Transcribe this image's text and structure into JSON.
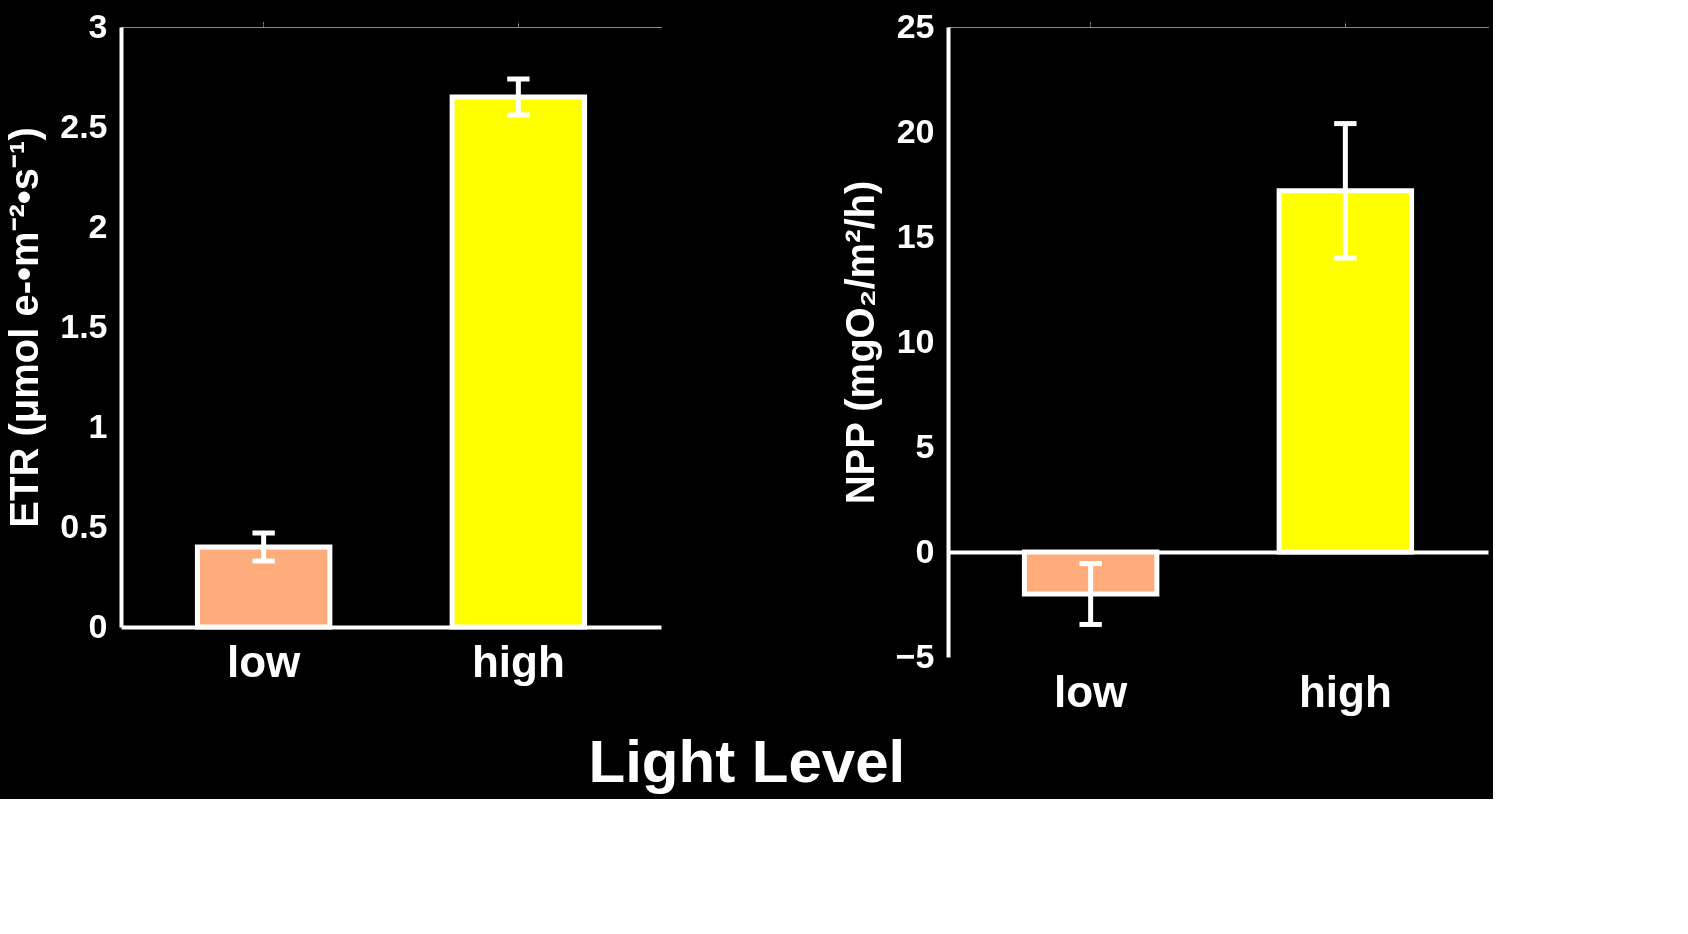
{
  "chart_data": [
    {
      "type": "bar",
      "ylabel": "ETR (μmol e-•m⁻²•s⁻¹)",
      "categories": [
        "low",
        "high"
      ],
      "values": [
        0.4,
        2.65
      ],
      "errors": [
        0.07,
        0.09
      ],
      "colors": [
        "#ffac7c",
        "#ffff00"
      ],
      "ylim": [
        0,
        3
      ],
      "yticks": [
        0,
        0.5,
        1,
        1.5,
        2,
        2.5,
        3
      ],
      "grid": false
    },
    {
      "type": "bar",
      "ylabel": "NPP (mgO₂/m²/h)",
      "xlabel": "Light Level",
      "categories": [
        "low",
        "high"
      ],
      "values": [
        -2.0,
        17.2
      ],
      "errors": [
        1.45,
        3.2
      ],
      "colors": [
        "#ffac7c",
        "#ffff00"
      ],
      "ylim": [
        -5,
        25
      ],
      "yticks": [
        -5,
        0,
        5,
        10,
        15,
        20,
        25
      ],
      "grid": false
    }
  ]
}
